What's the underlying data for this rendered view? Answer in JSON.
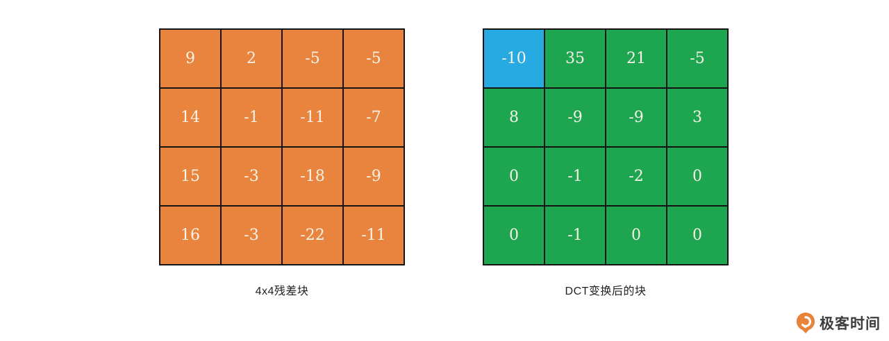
{
  "left_block": {
    "caption": "4x4残差块",
    "cell_color": "#e8843e",
    "rows": [
      [
        "9",
        "2",
        "-5",
        "-5"
      ],
      [
        "14",
        "-1",
        "-11",
        "-7"
      ],
      [
        "15",
        "-3",
        "-18",
        "-9"
      ],
      [
        "16",
        "-3",
        "-22",
        "-11"
      ]
    ]
  },
  "right_block": {
    "caption": "DCT变换后的块",
    "cell_color": "#1ea550",
    "dc_cell_color": "#27aae1",
    "rows": [
      [
        "-10",
        "35",
        "21",
        "-5"
      ],
      [
        "8",
        "-9",
        "-9",
        "3"
      ],
      [
        "0",
        "-1",
        "-2",
        "0"
      ],
      [
        "0",
        "-1",
        "0",
        "0"
      ]
    ]
  },
  "branding": {
    "logo_text": "极客时间",
    "logo_color": "#e8833c",
    "grid_line_color": "#131313",
    "number_text_color": "#f7f2e7"
  }
}
